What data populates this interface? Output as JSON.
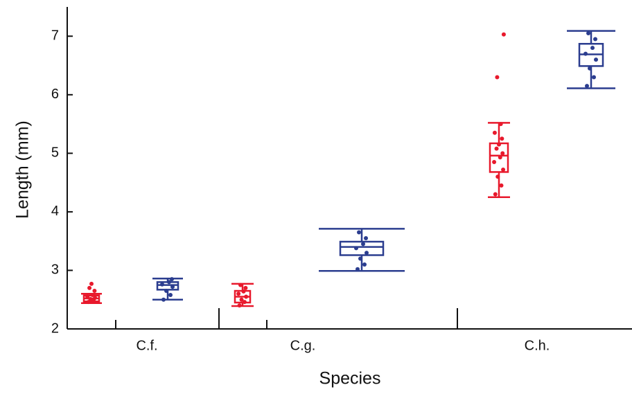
{
  "chart_data": {
    "type": "box",
    "x_label": "Species",
    "y_label": "Length (mm)",
    "categories": [
      "C.f.",
      "C.g.",
      "C.h."
    ],
    "ylim": [
      2,
      7.5
    ],
    "yticks": [
      2,
      3,
      4,
      5,
      6,
      7
    ],
    "series": [
      {
        "color": "#e8192c",
        "boxes": [
          {
            "whislo": 2.44,
            "q1": 2.47,
            "med": 2.52,
            "q3": 2.57,
            "whishi": 2.6,
            "points": [
              2.46,
              2.49,
              2.51,
              2.53,
              2.55,
              2.58,
              2.65,
              2.7,
              2.77
            ]
          },
          {
            "whislo": 2.39,
            "q1": 2.45,
            "med": 2.55,
            "q3": 2.65,
            "whishi": 2.77,
            "points": [
              2.4,
              2.46,
              2.5,
              2.55,
              2.6,
              2.64,
              2.7,
              2.75
            ]
          },
          {
            "whislo": 4.25,
            "q1": 4.68,
            "med": 4.96,
            "q3": 5.17,
            "whishi": 5.52,
            "points": [
              4.3,
              4.45,
              4.6,
              4.72,
              4.85,
              4.93,
              5.0,
              5.08,
              5.15,
              5.25,
              5.35,
              5.5,
              6.3,
              7.03
            ]
          }
        ]
      },
      {
        "color": "#2b3d8f",
        "boxes": [
          {
            "whislo": 2.5,
            "q1": 2.67,
            "med": 2.75,
            "q3": 2.8,
            "whishi": 2.86,
            "points": [
              2.5,
              2.58,
              2.65,
              2.72,
              2.76,
              2.8,
              2.85
            ]
          },
          {
            "whislo": 2.99,
            "q1": 3.26,
            "med": 3.4,
            "q3": 3.49,
            "whishi": 3.71,
            "points": [
              3.02,
              3.1,
              3.2,
              3.3,
              3.38,
              3.45,
              3.55,
              3.65
            ]
          },
          {
            "whislo": 6.11,
            "q1": 6.49,
            "med": 6.69,
            "q3": 6.87,
            "whishi": 7.09,
            "points": [
              6.15,
              6.3,
              6.45,
              6.6,
              6.7,
              6.8,
              6.95,
              7.05
            ]
          }
        ]
      }
    ]
  }
}
